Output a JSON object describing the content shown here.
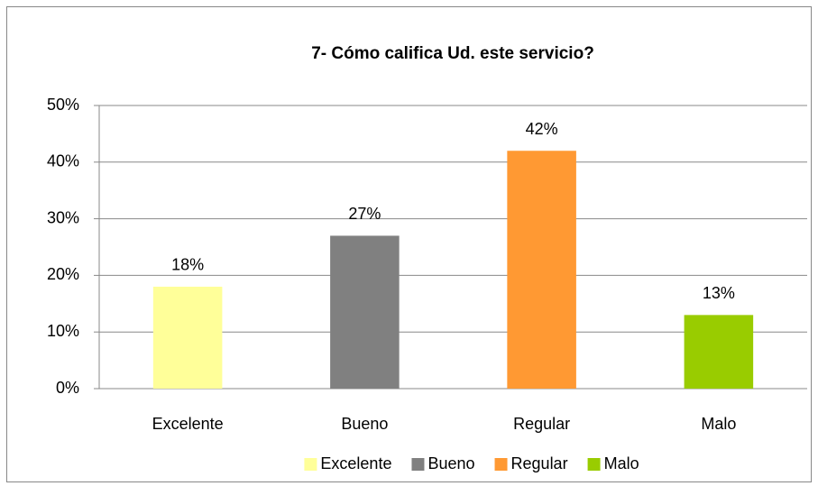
{
  "chart_data": {
    "type": "bar",
    "title": "7- Cómo califica Ud. este servicio?",
    "categories": [
      "Excelente",
      "Bueno",
      "Regular",
      "Malo"
    ],
    "values": [
      18,
      27,
      42,
      13
    ],
    "value_labels": [
      "18%",
      "27%",
      "42%",
      "13%"
    ],
    "colors": [
      "#ffff99",
      "#808080",
      "#ff9933",
      "#99cc00"
    ],
    "ylim": [
      0,
      50
    ],
    "yticks": [
      {
        "value": 0,
        "label": "0%"
      },
      {
        "value": 10,
        "label": "10%"
      },
      {
        "value": 20,
        "label": "20%"
      },
      {
        "value": 30,
        "label": "30%"
      },
      {
        "value": 40,
        "label": "40%"
      },
      {
        "value": 50,
        "label": "50%"
      }
    ],
    "grid": true,
    "legend": "bottom"
  }
}
